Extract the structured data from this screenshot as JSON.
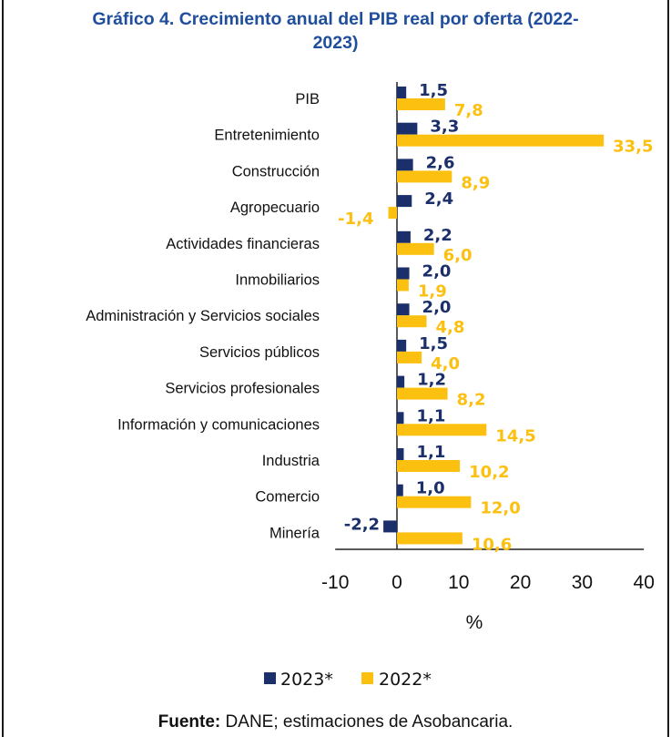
{
  "chart_data": {
    "type": "bar",
    "orientation": "horizontal",
    "title": "Gráfico 4. Crecimiento anual del PIB real por oferta (2022-2023)",
    "title_lines": [
      "Gráfico 4. Crecimiento anual del PIB real por oferta (2022-",
      "2023)"
    ],
    "xlabel": "%",
    "xlim": [
      -10,
      40
    ],
    "xticks": [
      "-10",
      "0",
      "10",
      "20",
      "30",
      "40"
    ],
    "categories": [
      "PIB",
      "Entretenimiento",
      "Construcción",
      "Agropecuario",
      "Actividades financieras",
      "Inmobiliarios",
      "Administración y Servicios sociales",
      "Servicios públicos",
      "Servicios profesionales",
      "Información y comunicaciones",
      "Industria",
      "Comercio",
      "Minería"
    ],
    "series": [
      {
        "name": "2023*",
        "color": "#1b2f6b",
        "values": [
          1.5,
          3.3,
          2.6,
          2.4,
          2.2,
          2.0,
          2.0,
          1.5,
          1.2,
          1.1,
          1.1,
          1.0,
          -2.2
        ],
        "labels": [
          "1,5",
          "3,3",
          "2,6",
          "2,4",
          "2,2",
          "2,0",
          "2,0",
          "1,5",
          "1,2",
          "1,1",
          "1,1",
          "1,0",
          "-2,2"
        ]
      },
      {
        "name": "2022*",
        "color": "#fcc010",
        "values": [
          7.8,
          33.5,
          8.9,
          -1.4,
          6.0,
          1.9,
          4.8,
          4.0,
          8.2,
          14.5,
          10.2,
          12.0,
          10.6
        ],
        "labels": [
          "7,8",
          "33,5",
          "8,9",
          "-1,4",
          "6,0",
          "1,9",
          "4,8",
          "4,0",
          "8,2",
          "14,5",
          "10,2",
          "12,0",
          "10,6"
        ]
      }
    ],
    "legend_position": "bottom",
    "grid": false
  },
  "source": {
    "label": "Fuente:",
    "text": " DANE; estimaciones de Asobancaria."
  }
}
